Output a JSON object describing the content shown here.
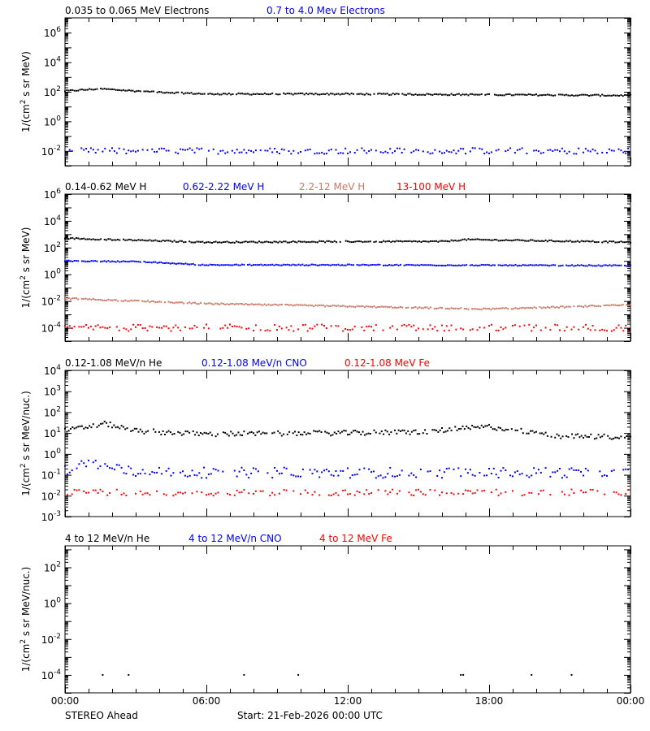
{
  "footer": {
    "spacecraft": "STEREO Ahead",
    "start": "Start: 21-Feb-2026 00:00 UTC"
  },
  "colors": {
    "black": "#000000",
    "blue": "#0000ff",
    "brown": "#c87864",
    "red": "#ff0000"
  },
  "chart_data": [
    {
      "type": "scatter",
      "log_y": true,
      "ylabel_base": "1/(cm",
      "ylabel_sup": "2",
      "ylabel_rest": " s sr MeV)",
      "ylim_exp": [
        -3,
        7
      ],
      "y_tick_exps": [
        -2,
        0,
        2,
        4,
        6
      ],
      "xlim_hours": [
        0,
        24
      ],
      "x_tick_hours": [
        0,
        6,
        12,
        18,
        24
      ],
      "x_tick_labels": [],
      "series": [
        {
          "name": "0.035 to 0.065 MeV Electrons",
          "color": "#000000",
          "profile": [
            [
              0,
              2.05
            ],
            [
              1.5,
              2.2
            ],
            [
              3,
              2.05
            ],
            [
              6,
              1.85
            ],
            [
              12,
              1.85
            ],
            [
              18,
              1.8
            ],
            [
              24,
              1.75
            ]
          ],
          "jitter": 0.05,
          "step_h": 0.08,
          "fill": 0.95
        },
        {
          "name": "0.7 to 4.0 Mev Electrons",
          "color": "#0000ff",
          "profile": [
            [
              0,
              -2.0
            ],
            [
              24,
              -2.0
            ]
          ],
          "jitter": 0.2,
          "step_h": 0.1,
          "fill": 0.8
        }
      ]
    },
    {
      "type": "scatter",
      "log_y": true,
      "ylabel_base": "1/(cm",
      "ylabel_sup": "2",
      "ylabel_rest": " s sr MeV)",
      "ylim_exp": [
        -5,
        6
      ],
      "y_tick_exps": [
        -4,
        -2,
        0,
        2,
        4,
        6
      ],
      "xlim_hours": [
        0,
        24
      ],
      "x_tick_hours": [
        0,
        6,
        12,
        18,
        24
      ],
      "x_tick_labels": [],
      "series": [
        {
          "name": "0.14-0.62 MeV H",
          "color": "#000000",
          "profile": [
            [
              0,
              2.7
            ],
            [
              3,
              2.55
            ],
            [
              6,
              2.4
            ],
            [
              12,
              2.45
            ],
            [
              16,
              2.45
            ],
            [
              17,
              2.6
            ],
            [
              24,
              2.4
            ]
          ],
          "jitter": 0.05,
          "step_h": 0.08,
          "fill": 0.95
        },
        {
          "name": "0.62-2.22 MeV H",
          "color": "#0000ff",
          "profile": [
            [
              0,
              1.0
            ],
            [
              3,
              0.95
            ],
            [
              6,
              0.7
            ],
            [
              12,
              0.7
            ],
            [
              24,
              0.65
            ]
          ],
          "jitter": 0.04,
          "step_h": 0.08,
          "fill": 0.95
        },
        {
          "name": "2.2-12 MeV H",
          "color": "#c87864",
          "profile": [
            [
              0,
              -1.8
            ],
            [
              6,
              -2.2
            ],
            [
              12,
              -2.4
            ],
            [
              18,
              -2.6
            ],
            [
              24,
              -2.3
            ]
          ],
          "jitter": 0.05,
          "step_h": 0.08,
          "fill": 0.95
        },
        {
          "name": "13-100 MeV H",
          "color": "#ff0000",
          "profile": [
            [
              0,
              -4.0
            ],
            [
              24,
              -4.0
            ]
          ],
          "jitter": 0.25,
          "step_h": 0.1,
          "fill": 0.7
        }
      ]
    },
    {
      "type": "scatter",
      "log_y": true,
      "ylabel_base": "1/(cm",
      "ylabel_sup": "2",
      "ylabel_rest": " s sr MeV/nuc.)",
      "ylim_exp": [
        -3,
        4
      ],
      "y_tick_exps": [
        -3,
        -2,
        -1,
        0,
        1,
        2,
        3,
        4
      ],
      "xlim_hours": [
        0,
        24
      ],
      "x_tick_hours": [
        0,
        6,
        12,
        18,
        24
      ],
      "x_tick_labels": [],
      "series": [
        {
          "name": "0.12-1.08 MeV/n He",
          "color": "#000000",
          "profile": [
            [
              0,
              1.1
            ],
            [
              1.7,
              1.45
            ],
            [
              3,
              1.1
            ],
            [
              6,
              0.95
            ],
            [
              12,
              1.0
            ],
            [
              15,
              1.05
            ],
            [
              18,
              1.3
            ],
            [
              21,
              0.85
            ],
            [
              24,
              0.8
            ]
          ],
          "jitter": 0.12,
          "step_h": 0.08,
          "fill": 0.9
        },
        {
          "name": "0.12-1.08 MeV/n CNO",
          "color": "#0000ff",
          "profile": [
            [
              0,
              -0.8
            ],
            [
              1,
              -0.4
            ],
            [
              3,
              -0.9
            ],
            [
              24,
              -0.9
            ]
          ],
          "jitter": 0.25,
          "step_h": 0.1,
          "fill": 0.8
        },
        {
          "name": "0.12-1.08 MeV Fe",
          "color": "#ff0000",
          "profile": [
            [
              0,
              -1.85
            ],
            [
              24,
              -1.85
            ]
          ],
          "jitter": 0.15,
          "step_h": 0.1,
          "fill": 0.6
        }
      ]
    },
    {
      "type": "scatter",
      "log_y": true,
      "ylabel_base": "1/(cm",
      "ylabel_sup": "2",
      "ylabel_rest": " s sr MeV/nuc.)",
      "ylim_exp": [
        -5,
        3.2
      ],
      "y_tick_exps": [
        -4,
        -2,
        0,
        2
      ],
      "xlim_hours": [
        0,
        24
      ],
      "x_tick_hours": [
        0,
        6,
        12,
        18,
        24
      ],
      "x_tick_labels": [
        "00:00",
        "06:00",
        "12:00",
        "18:00",
        "00:00"
      ],
      "series": [
        {
          "name": "4 to 12 MeV/n He",
          "color": "#000000",
          "points": [
            [
              1.6,
              -4.0
            ],
            [
              2.7,
              -4.0
            ],
            [
              7.6,
              -4.0
            ],
            [
              9.9,
              -4.0
            ],
            [
              16.8,
              -4.0
            ],
            [
              16.9,
              -4.0
            ],
            [
              19.8,
              -4.0
            ],
            [
              21.5,
              -4.0
            ]
          ]
        },
        {
          "name": "4 to 12 MeV/n CNO",
          "color": "#0000ff",
          "points": []
        },
        {
          "name": "4 to 12 MeV Fe",
          "color": "#ff0000",
          "points": []
        }
      ]
    }
  ]
}
